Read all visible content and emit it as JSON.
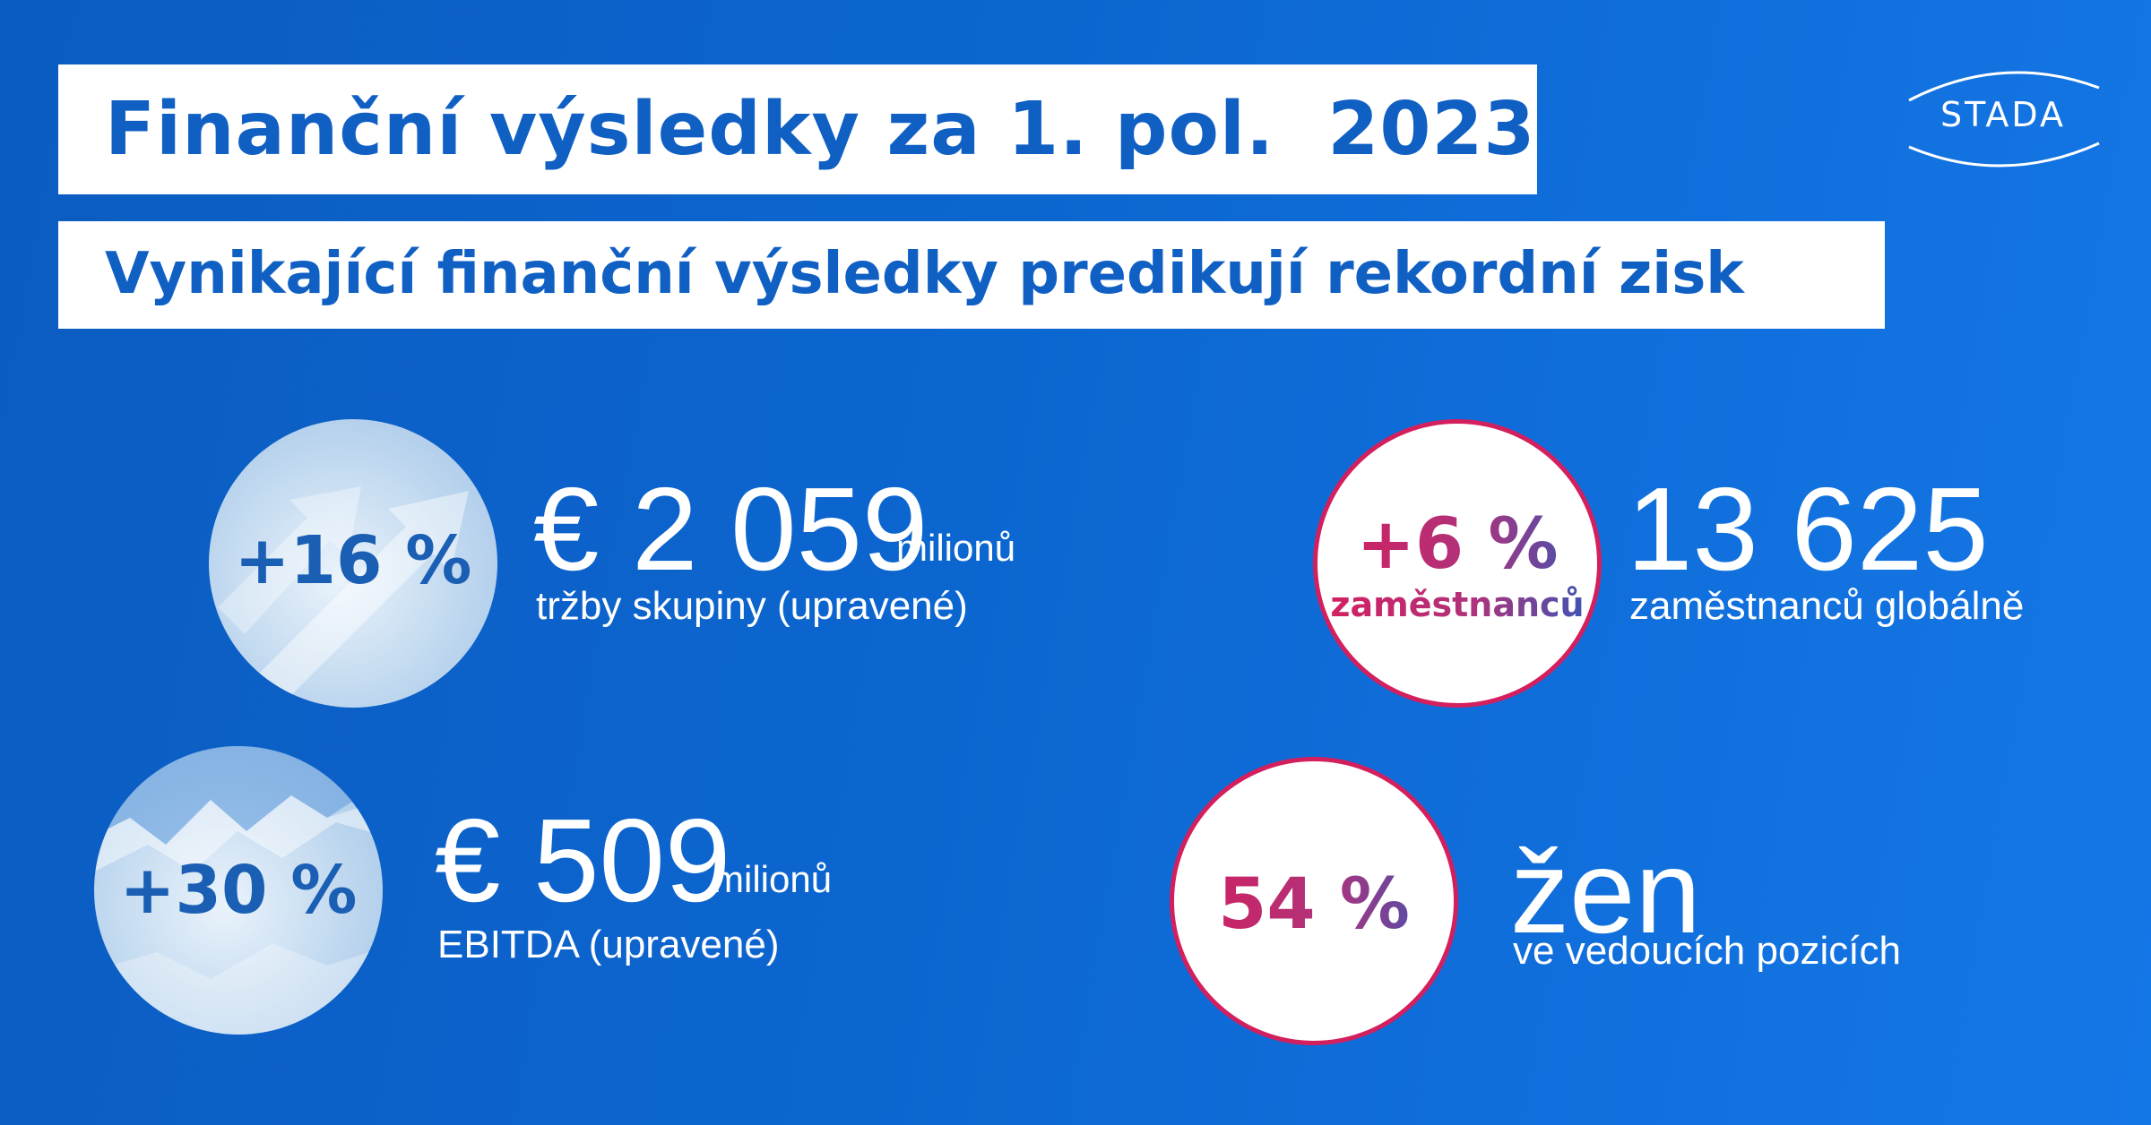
{
  "title": "Finanční výsledky za 1. pol.  2023",
  "subtitle": "Vynikající finanční výsledky predikují rekordní zisk",
  "logo": {
    "text": "STADA"
  },
  "stats": [
    {
      "badge": "+16 %",
      "value": "€ 2 059",
      "unit": "milionů",
      "description": "tržby skupiny (upravené)"
    },
    {
      "badge": "+30 %",
      "value": "€ 509",
      "unit": "milionů",
      "description": "EBITDA (upravené)"
    },
    {
      "badge": "+6 %",
      "badge_sub": "zaměstnanců",
      "value": "13 625",
      "description": "zaměstnanců globálně"
    },
    {
      "badge": "54 %",
      "value": "žen",
      "description": "ve vedoucích pozicích"
    }
  ],
  "colors": {
    "background": "#0c66d0",
    "title": "#1060c4",
    "accent_pink": "#d41f5e",
    "accent_blue": "#3457b8"
  }
}
